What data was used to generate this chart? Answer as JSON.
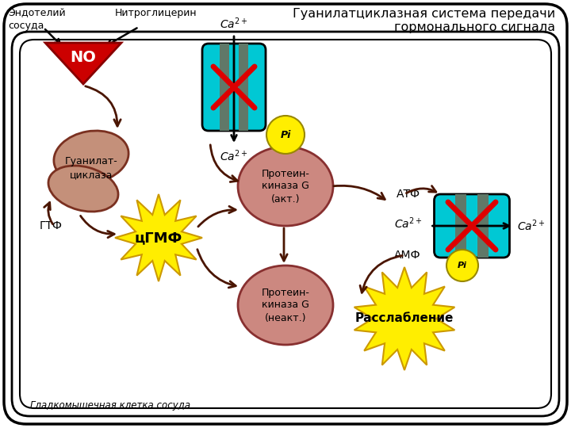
{
  "title": "Гуанилатциклазная система передачи\nгормонального сигнала",
  "bg_outer": "#ffffff",
  "arrow_color": "#4a1500",
  "channel_color": "#00c8d4",
  "channel_stripe": "#607868",
  "x_mark_color": "#dd0000",
  "enzyme_color": "#c4907a",
  "pk_color": "#cc8880",
  "cgmp_color": "#ffee00",
  "pi_color": "#ffee00",
  "relax_color": "#ffee00",
  "endoteliy_label": "Эндотелий\nсосуда",
  "nitro_label": "Нитроглицерин",
  "no_label": "NO",
  "ca2_top": "$Ca^{2+}$",
  "ca2_bottom": "$Ca^{2+}$",
  "ca2_mid": "$Ca^{2+}$",
  "ca2_right": "$Ca^{2+}$",
  "pi_label": "Pi",
  "gtf_label": "ГТФ",
  "cgmp_label": "цГМФ",
  "pk_active_label": "Протеин-\nкиназа G\n(акт.)",
  "pk_inactive_label": "Протеин-\nкиназа G\n(неакт.)",
  "atf_label": "АТФ",
  "amf_label": "АМФ",
  "pi2_label": "Pi",
  "relax_label": "Расслабление",
  "cell_label": "Гладкомышечная клетка сосуда",
  "enzyme_label": "Гуанилат-\nциклаза"
}
